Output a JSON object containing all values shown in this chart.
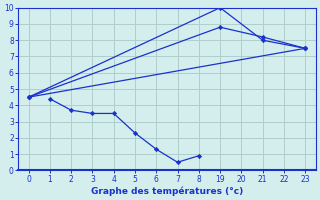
{
  "xlabel": "Graphe des températures (°c)",
  "bg_color": "#d4eeed",
  "grid_color": "#b0cece",
  "line_color": "#1a32cc",
  "axis_color": "#1a32cc",
  "xlim": [
    -0.5,
    13.5
  ],
  "ylim": [
    0,
    10
  ],
  "xtick_positions": [
    0,
    1,
    2,
    3,
    4,
    5,
    6,
    7,
    8,
    9,
    10,
    11,
    12,
    13
  ],
  "xtick_labels": [
    "0",
    "1",
    "2",
    "3",
    "4",
    "5",
    "6",
    "7",
    "8",
    "19",
    "20",
    "21",
    "22",
    "23"
  ],
  "yticks": [
    0,
    1,
    2,
    3,
    4,
    5,
    6,
    7,
    8,
    9,
    10
  ],
  "lines": [
    {
      "x": [
        0,
        9,
        11,
        13
      ],
      "y": [
        4.5,
        10.0,
        8.0,
        7.5
      ]
    },
    {
      "x": [
        0,
        9,
        11,
        13
      ],
      "y": [
        4.5,
        8.8,
        8.2,
        7.5
      ]
    },
    {
      "x": [
        0,
        13
      ],
      "y": [
        4.5,
        7.5
      ]
    },
    {
      "x": [
        1,
        2,
        3,
        4,
        5,
        6,
        7,
        8
      ],
      "y": [
        4.4,
        3.7,
        3.5,
        3.5,
        2.3,
        1.3,
        0.5,
        0.9
      ]
    }
  ]
}
